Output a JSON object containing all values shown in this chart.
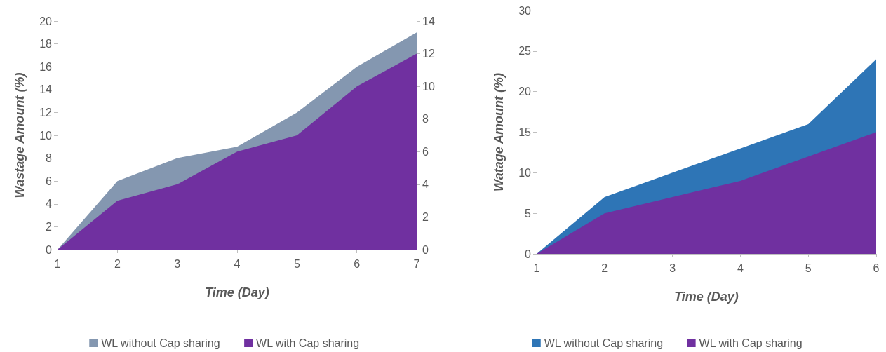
{
  "chart_data": [
    {
      "type": "area",
      "xlabel": "Time (Day)",
      "ylabel": "Wastage Amount (%)",
      "x": [
        1,
        2,
        3,
        4,
        5,
        6,
        7
      ],
      "xlim": [
        1,
        7
      ],
      "xticks": [
        1,
        2,
        3,
        4,
        5,
        6,
        7
      ],
      "ylim": [
        0,
        20
      ],
      "yticks": [
        0,
        2,
        4,
        6,
        8,
        10,
        12,
        14,
        16,
        18,
        20
      ],
      "y2lim": [
        0,
        14
      ],
      "y2ticks": [
        0,
        2,
        4,
        6,
        8,
        10,
        12,
        14
      ],
      "legend": "bottom",
      "series": [
        {
          "name": "WL without Cap sharing",
          "color": "#8497b0",
          "values": [
            0,
            6,
            8,
            9,
            12,
            16,
            19
          ]
        },
        {
          "name": "WL with Cap sharing",
          "color": "#7030a0",
          "axis": "y2",
          "values": [
            0,
            3,
            4,
            6,
            7,
            10,
            12
          ]
        }
      ]
    },
    {
      "type": "area",
      "xlabel": "Time (Day)",
      "ylabel": "Watage Amount (%)",
      "x": [
        1,
        2,
        3,
        4,
        5,
        6
      ],
      "xlim": [
        1,
        6
      ],
      "xticks": [
        1,
        2,
        3,
        4,
        5,
        6
      ],
      "ylim": [
        0,
        30
      ],
      "yticks": [
        0,
        5,
        10,
        15,
        20,
        25,
        30
      ],
      "legend": "bottom",
      "series": [
        {
          "name": "WL without Cap sharing",
          "color": "#2e75b6",
          "values": [
            0,
            7,
            10,
            13,
            16,
            24
          ]
        },
        {
          "name": "WL with Cap sharing",
          "color": "#7030a0",
          "values": [
            0,
            5,
            7,
            9,
            12,
            15
          ]
        }
      ]
    }
  ]
}
